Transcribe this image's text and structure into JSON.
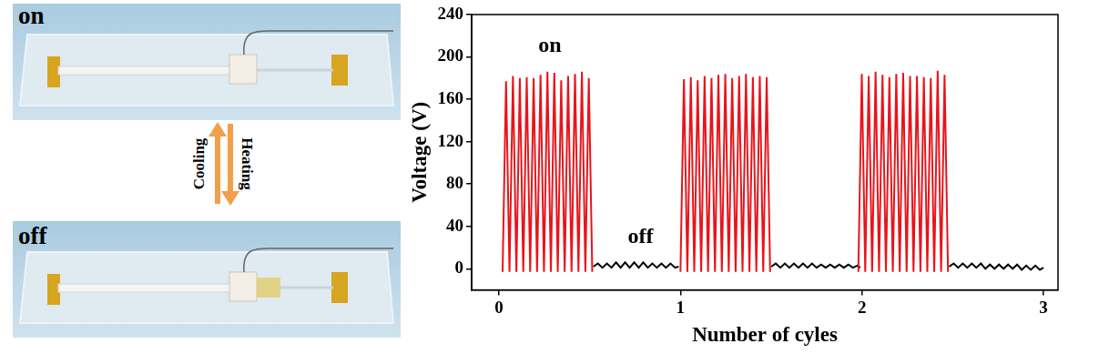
{
  "figure_labels": {
    "top_state": "on",
    "bottom_state": "off",
    "up_arrow": "Cooling",
    "down_arrow": "Heating"
  },
  "chart_data": {
    "type": "line",
    "x_label": "Number of cyles",
    "y_label": "Voltage (V)",
    "xlim": [
      -0.15,
      3.08
    ],
    "xticks": [
      0,
      1,
      2,
      3
    ],
    "ylim": [
      -20,
      240
    ],
    "yticks": [
      0,
      40,
      80,
      120,
      160,
      200,
      240
    ],
    "grid": false,
    "annotations": [
      {
        "text": "on",
        "x": 0.28,
        "y": 210
      },
      {
        "text": "off",
        "x": 0.78,
        "y": 30
      }
    ],
    "series": [
      {
        "color": "#e8141b",
        "x": [
          0.02,
          0.039,
          0.058,
          0.077,
          0.096,
          0.115,
          0.134,
          0.153,
          0.172,
          0.191,
          0.21,
          0.229,
          0.248,
          0.267,
          0.286,
          0.305,
          0.324,
          0.343,
          0.362,
          0.381,
          0.4,
          0.419,
          0.438,
          0.457,
          0.476,
          0.495,
          0.514,
          0.75,
          1.0,
          1.019,
          1.038,
          1.057,
          1.076,
          1.095,
          1.114,
          1.133,
          1.152,
          1.171,
          1.19,
          1.209,
          1.228,
          1.247,
          1.266,
          1.285,
          1.304,
          1.323,
          1.342,
          1.361,
          1.38,
          1.399,
          1.418,
          1.437,
          1.456,
          1.475,
          1.494,
          1.75,
          1.98,
          1.999,
          2.018,
          2.037,
          2.056,
          2.075,
          2.094,
          2.113,
          2.132,
          2.151,
          2.17,
          2.189,
          2.208,
          2.227,
          2.246,
          2.265,
          2.284,
          2.303,
          2.322,
          2.341,
          2.36,
          2.379,
          2.398,
          2.417,
          2.436,
          2.455,
          2.474
        ],
        "values": [
          -3,
          177,
          -3,
          182,
          -3,
          180,
          -3,
          181,
          -3,
          180,
          -3,
          183,
          -3,
          186,
          -3,
          185,
          -3,
          178,
          -3,
          182,
          -3,
          184,
          -3,
          186,
          -3,
          180,
          -3,
          null,
          -3,
          179,
          -3,
          181,
          -3,
          178,
          -3,
          182,
          -3,
          180,
          -3,
          183,
          -3,
          184,
          -3,
          180,
          -3,
          182,
          -3,
          184,
          -3,
          181,
          -3,
          182,
          -3,
          181,
          -3,
          null,
          -3,
          184,
          -3,
          182,
          -3,
          186,
          -3,
          183,
          -3,
          181,
          -3,
          184,
          -3,
          185,
          -3,
          182,
          -3,
          182,
          -3,
          181,
          -3,
          180,
          -3,
          187,
          -3,
          183,
          -3
        ]
      },
      {
        "color": "#000000",
        "x": [
          0.52,
          0.545,
          0.57,
          0.595,
          0.62,
          0.645,
          0.67,
          0.695,
          0.72,
          0.745,
          0.77,
          0.795,
          0.82,
          0.845,
          0.87,
          0.895,
          0.92,
          0.945,
          0.97,
          0.99,
          1.25,
          1.5,
          1.525,
          1.55,
          1.575,
          1.6,
          1.625,
          1.65,
          1.675,
          1.7,
          1.725,
          1.75,
          1.775,
          1.8,
          1.825,
          1.85,
          1.875,
          1.9,
          1.925,
          1.95,
          1.975,
          1.99,
          2.2,
          2.48,
          2.505,
          2.53,
          2.555,
          2.58,
          2.605,
          2.63,
          2.655,
          2.68,
          2.705,
          2.73,
          2.755,
          2.78,
          2.805,
          2.83,
          2.855,
          2.88,
          2.905,
          2.93,
          2.955,
          2.98,
          3.0
        ],
        "values": [
          2,
          5,
          1,
          5,
          1,
          6,
          1,
          6,
          1,
          6,
          1,
          6,
          1,
          5,
          1,
          5,
          1,
          5,
          1,
          2,
          null,
          2,
          5,
          1,
          5,
          1,
          5,
          1,
          5,
          1,
          5,
          1,
          4,
          1,
          4,
          1,
          4,
          1,
          4,
          1,
          3,
          1,
          null,
          2,
          5,
          1,
          5,
          1,
          5,
          1,
          5,
          0,
          4,
          0,
          4,
          0,
          4,
          0,
          4,
          -1,
          3,
          -1,
          3,
          -1,
          1
        ]
      }
    ]
  }
}
